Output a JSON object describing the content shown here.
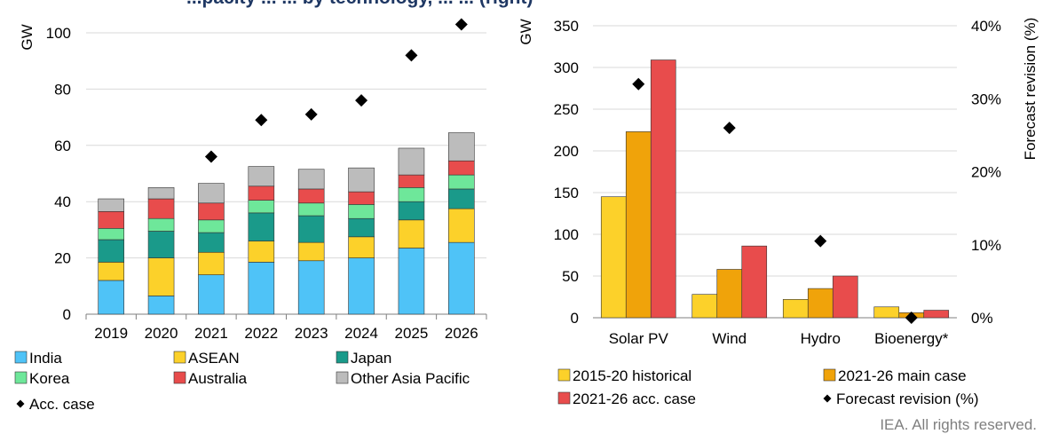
{
  "title_fragment": "...pacity ... ... by technology, ... ... (right)",
  "copyright": "IEA. All rights reserved.",
  "chart_data": [
    {
      "type": "bar",
      "stacked": true,
      "ylabel": "GW",
      "ylim": [
        0,
        100
      ],
      "yticks": [
        0,
        20,
        40,
        60,
        80,
        100
      ],
      "categories": [
        "2019",
        "2020",
        "2021",
        "2022",
        "2023",
        "2024",
        "2025",
        "2026"
      ],
      "series": [
        {
          "name": "India",
          "color": "#4fc3f7",
          "values": [
            12,
            6.5,
            14,
            18.5,
            19,
            20,
            23.5,
            25.5
          ]
        },
        {
          "name": "ASEAN",
          "color": "#fcd12a",
          "values": [
            6.5,
            13.5,
            8,
            7.5,
            6.5,
            7.5,
            10,
            12
          ]
        },
        {
          "name": "Japan",
          "color": "#1a9a8a",
          "values": [
            8,
            9.5,
            7,
            10,
            9.5,
            6.5,
            6.5,
            7
          ]
        },
        {
          "name": "Korea",
          "color": "#6ee79a",
          "values": [
            4,
            4.5,
            4.5,
            4.5,
            4.5,
            5,
            5,
            5
          ]
        },
        {
          "name": "Australia",
          "color": "#e84c4c",
          "values": [
            6,
            7,
            6,
            5,
            5,
            4.5,
            4.5,
            5
          ]
        },
        {
          "name": "Other Asia Pacific",
          "color": "#bcbcbc",
          "values": [
            4.5,
            4,
            7,
            7,
            7,
            8.5,
            9.5,
            10
          ]
        }
      ],
      "markers": {
        "name": "Acc. case",
        "values": [
          null,
          null,
          56,
          69,
          71,
          76,
          92,
          103
        ]
      },
      "legend_position": "bottom"
    },
    {
      "type": "bar",
      "ylabel": "GW",
      "y2label": "Forecast revision (%)",
      "ylim": [
        0,
        350
      ],
      "yticks": [
        0,
        50,
        100,
        150,
        200,
        250,
        300,
        350
      ],
      "y2lim": [
        0,
        40
      ],
      "y2ticks": [
        "0%",
        "10%",
        "20%",
        "30%",
        "40%"
      ],
      "categories": [
        "Solar PV",
        "Wind",
        "Hydro",
        "Bioenergy*"
      ],
      "series": [
        {
          "name": "2015-20 historical",
          "color": "#fcd12a",
          "values": [
            145,
            28,
            22,
            13
          ]
        },
        {
          "name": "2021-26 main case",
          "color": "#f0a30a",
          "values": [
            223,
            58,
            35,
            6
          ]
        },
        {
          "name": "2021-26 acc. case",
          "color": "#e84c4c",
          "values": [
            309,
            86,
            50,
            9
          ]
        }
      ],
      "revision": {
        "name": "Forecast revision (%)",
        "values": [
          32,
          26,
          10.5,
          0
        ]
      },
      "legend_position": "bottom"
    }
  ]
}
